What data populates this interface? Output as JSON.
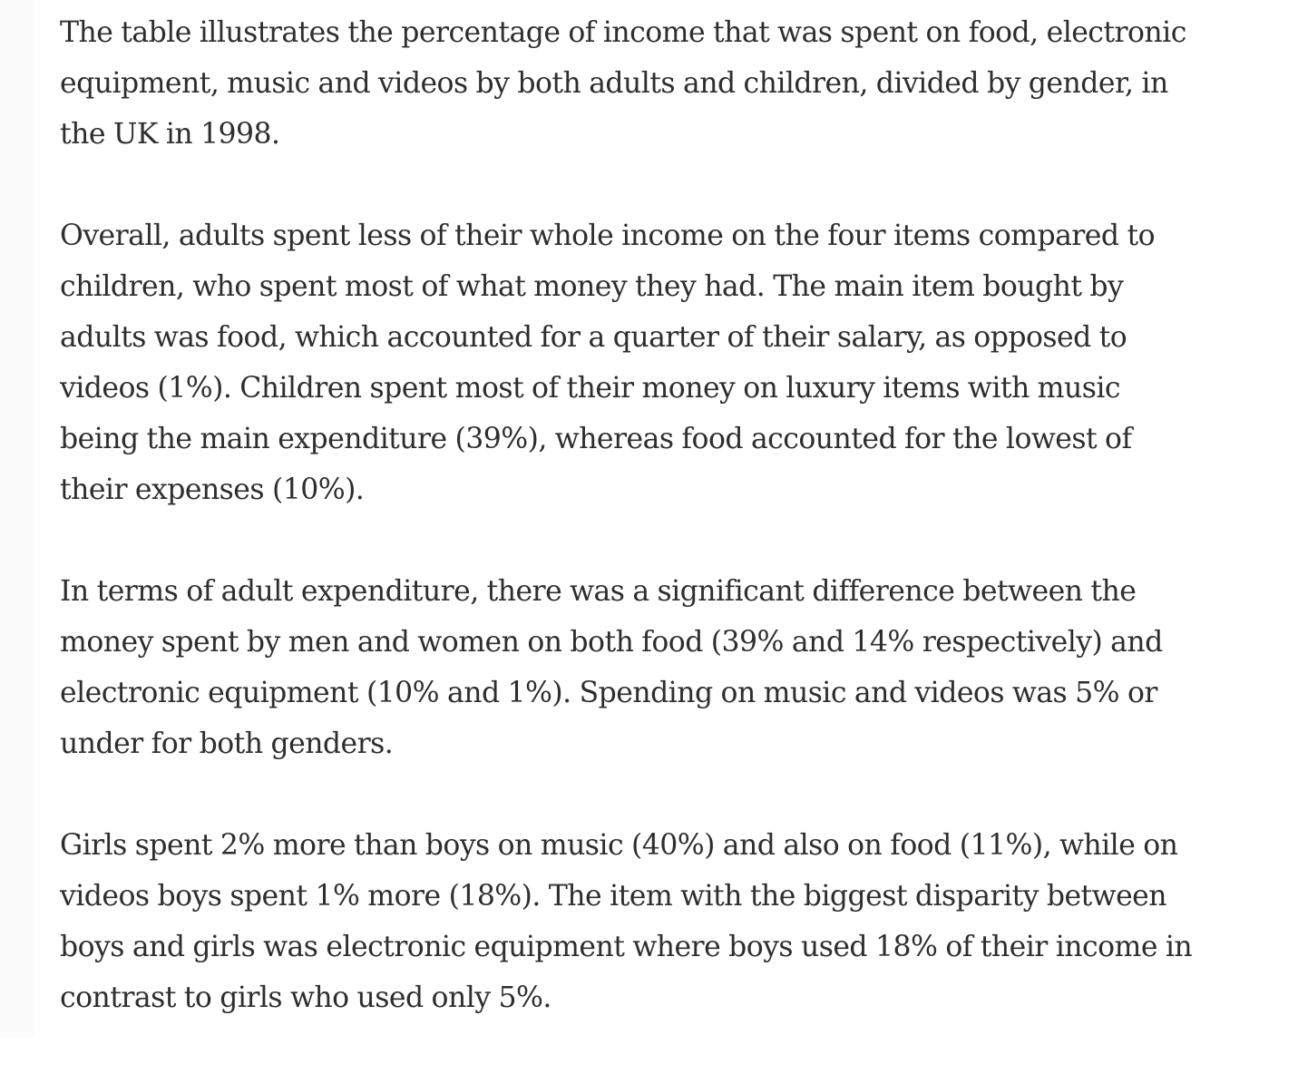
{
  "article": {
    "paragraphs": [
      {
        "lines": [
          "The table illustrates the percentage of income that was spent on food, electronic",
          "equipment, music and videos by both adults and children, divided by gender, in",
          "the UK in 1998."
        ]
      },
      {
        "lines": [
          "Overall, adults spent less of their whole income on the four items compared to",
          "children, who spent most of what money they had. The main item bought by",
          "adults was food, which accounted for a quarter of their salary, as opposed to",
          "videos (1%). Children spent most of their money on luxury items with music",
          "being the main expenditure (39%), whereas food accounted for the lowest of",
          "their expenses (10%)."
        ]
      },
      {
        "lines": [
          "In terms of adult expenditure, there was a significant difference between the",
          "money spent by men and women on both food (39% and 14% respectively) and",
          "electronic equipment (10% and 1%). Spending on music and videos was 5% or",
          "under for both genders."
        ]
      },
      {
        "lines": [
          "Girls spent 2% more than boys on music (40%) and also on food (11%), while on",
          "videos boys spent 1% more (18%). The item with the biggest disparity between",
          "boys and girls was electronic equipment where boys used 18% of their income in",
          "contrast to girls who used only 5%."
        ]
      }
    ]
  }
}
